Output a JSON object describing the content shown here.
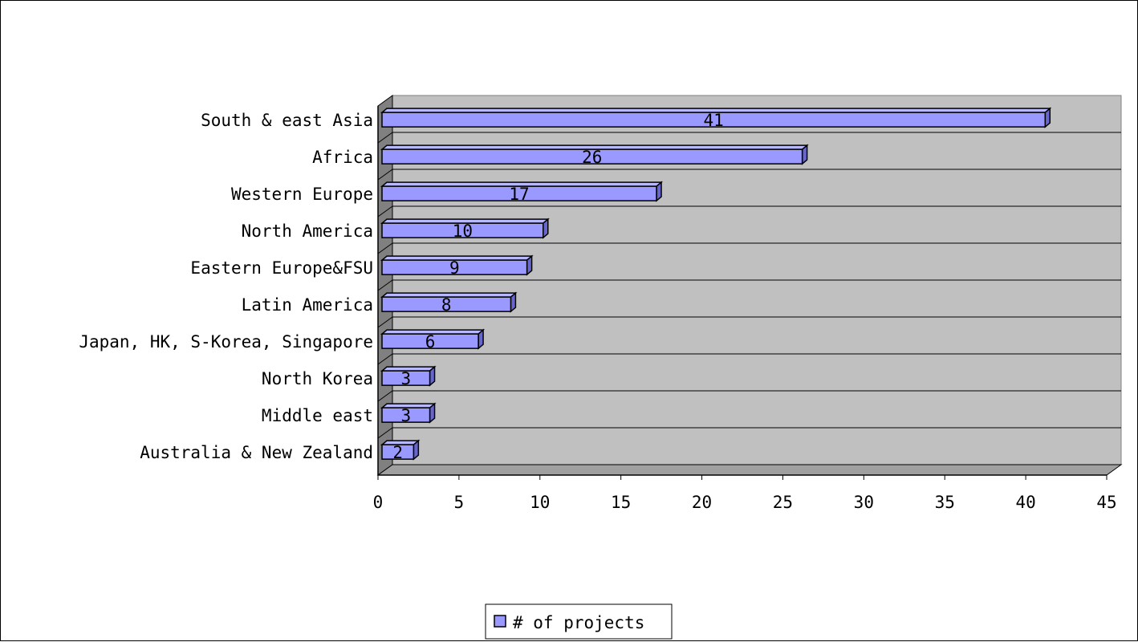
{
  "chart_data": {
    "type": "bar",
    "orientation": "horizontal",
    "style": "3d",
    "categories": [
      "South & east Asia",
      "Africa",
      "Western Europe",
      "North America",
      "Eastern Europe&FSU",
      "Latin America",
      "Japan, HK, S-Korea, Singapore",
      "North Korea",
      "Middle east",
      "Australia & New Zealand"
    ],
    "series": [
      {
        "name": "# of projects",
        "values": [
          41,
          26,
          17,
          10,
          9,
          8,
          6,
          3,
          3,
          2
        ]
      }
    ],
    "xlim": [
      0,
      45
    ],
    "xticks": [
      "0",
      "5",
      "10",
      "15",
      "20",
      "25",
      "30",
      "35",
      "40",
      "45"
    ],
    "grid": true,
    "legend": "bottom-center",
    "title": "",
    "xlabel": "",
    "ylabel": "",
    "colors": {
      "bar_front": "#9999ff",
      "bar_top": "#b8b8ff",
      "bar_side": "#6666cc",
      "plot_wall": "#c0c0c0",
      "side_wall": "#808080",
      "floor": "#a0a0a0",
      "grid": "#000000"
    }
  }
}
